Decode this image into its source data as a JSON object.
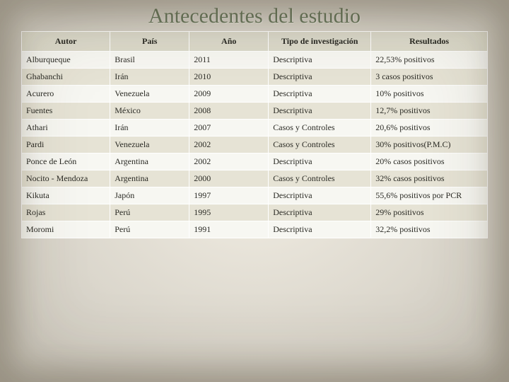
{
  "title": "Antecedentes del estudio",
  "table": {
    "columns": [
      "Autor",
      "País",
      "Año",
      "Tipo de investigación",
      "Resultados"
    ],
    "rows": [
      [
        "Alburqueque",
        "Brasil",
        "2011",
        "Descriptiva",
        "22,53% positivos"
      ],
      [
        "Ghabanchi",
        "Irán",
        "2010",
        "Descriptiva",
        "3 casos positivos"
      ],
      [
        "Acurero",
        "Venezuela",
        "2009",
        "Descriptiva",
        "10% positivos"
      ],
      [
        "Fuentes",
        "México",
        "2008",
        "Descriptiva",
        "12,7% positivos"
      ],
      [
        "Athari",
        "Irán",
        "2007",
        "Casos y Controles",
        "20,6% positivos"
      ],
      [
        "Pardi",
        "Venezuela",
        "2002",
        "Casos y Controles",
        "30% positivos(P.M.C)"
      ],
      [
        "Ponce de León",
        "Argentina",
        "2002",
        "Descriptiva",
        "20% casos positivos"
      ],
      [
        "Nocito - Mendoza",
        "Argentina",
        "2000",
        "Casos y Controles",
        "32% casos positivos"
      ],
      [
        "Kikuta",
        "Japón",
        "1997",
        "Descriptiva",
        "55,6% positivos por PCR"
      ],
      [
        "Rojas",
        "Perú",
        "1995",
        "Descriptiva",
        "29% positivos"
      ],
      [
        "Moromi",
        "Perú",
        "1991",
        "Descriptiva",
        "32,2% positivos"
      ]
    ],
    "header_bg": "#dcdacb",
    "row_odd_bg": "#f7f7f2",
    "row_even_bg": "#e6e3d5",
    "border_color": "#ffffff",
    "title_color": "#6b7a5e",
    "page_bg": "#ede8dc",
    "font_family": "Georgia",
    "title_fontsize": 30,
    "cell_fontsize": 12,
    "col_widths_pct": [
      19,
      17,
      17,
      22,
      25
    ]
  }
}
